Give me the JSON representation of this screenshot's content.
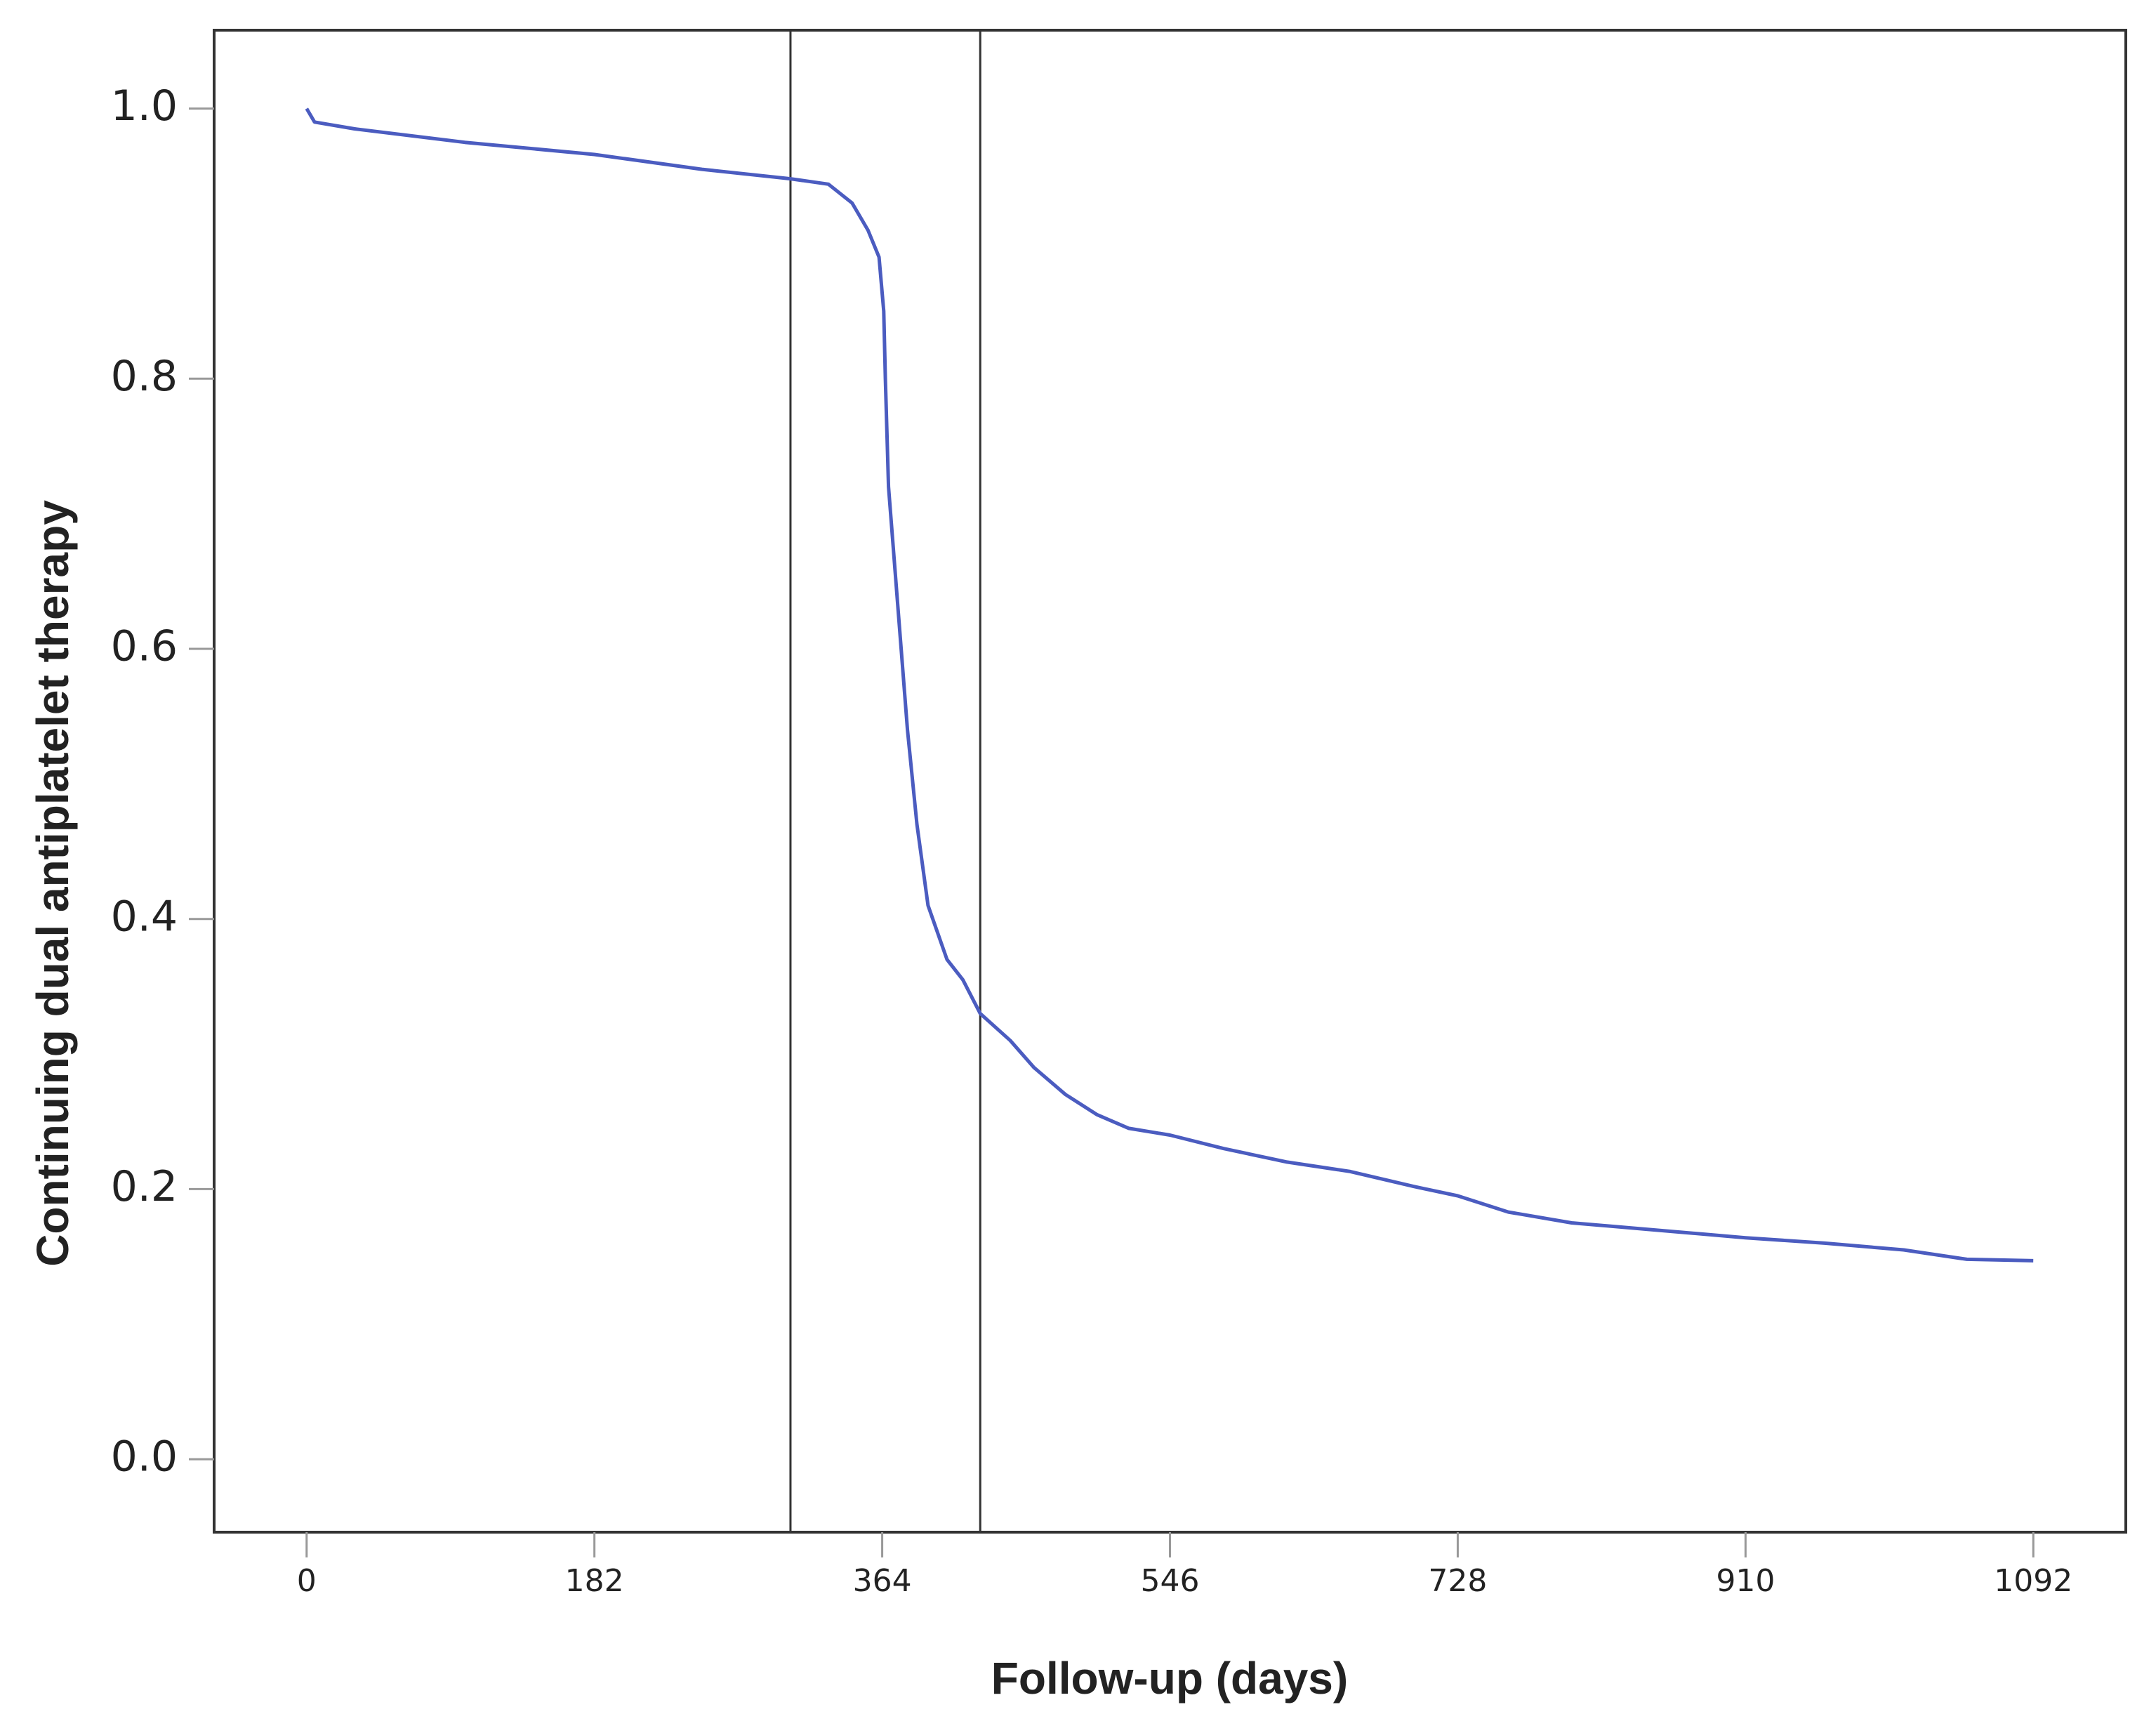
{
  "chart_data": {
    "type": "line",
    "xlabel": "Follow-up (days)",
    "ylabel": "Continuing dual antiplatelet therapy",
    "x": [
      0,
      5,
      30,
      100,
      182,
      250,
      306,
      330,
      345,
      355,
      362,
      365,
      366,
      368,
      372,
      376,
      380,
      386,
      393,
      405,
      415,
      426,
      445,
      460,
      480,
      500,
      520,
      546,
      580,
      620,
      660,
      700,
      728,
      760,
      800,
      850,
      910,
      960,
      1010,
      1050,
      1092
    ],
    "series": [
      {
        "color": "#4b5cc0",
        "values": [
          1.0,
          0.99,
          0.985,
          0.975,
          0.966,
          0.955,
          0.948,
          0.944,
          0.93,
          0.91,
          0.89,
          0.85,
          0.8,
          0.72,
          0.66,
          0.6,
          0.54,
          0.47,
          0.41,
          0.37,
          0.355,
          0.33,
          0.31,
          0.29,
          0.27,
          0.255,
          0.245,
          0.24,
          0.23,
          0.22,
          0.213,
          0.202,
          0.195,
          0.183,
          0.175,
          0.17,
          0.164,
          0.16,
          0.155,
          0.148,
          0.147
        ]
      }
    ],
    "vlines": [
      306,
      426
    ],
    "xlim": [
      -58.5,
      1150.5
    ],
    "ylim": [
      -0.054,
      1.058
    ],
    "xticks": [
      0,
      182,
      364,
      546,
      728,
      910,
      1092
    ],
    "yticks": [
      {
        "value": 0,
        "label": "0.0"
      },
      0.2,
      0.4,
      0.6,
      0.8,
      {
        "value": 1,
        "label": "1.0"
      }
    ]
  }
}
